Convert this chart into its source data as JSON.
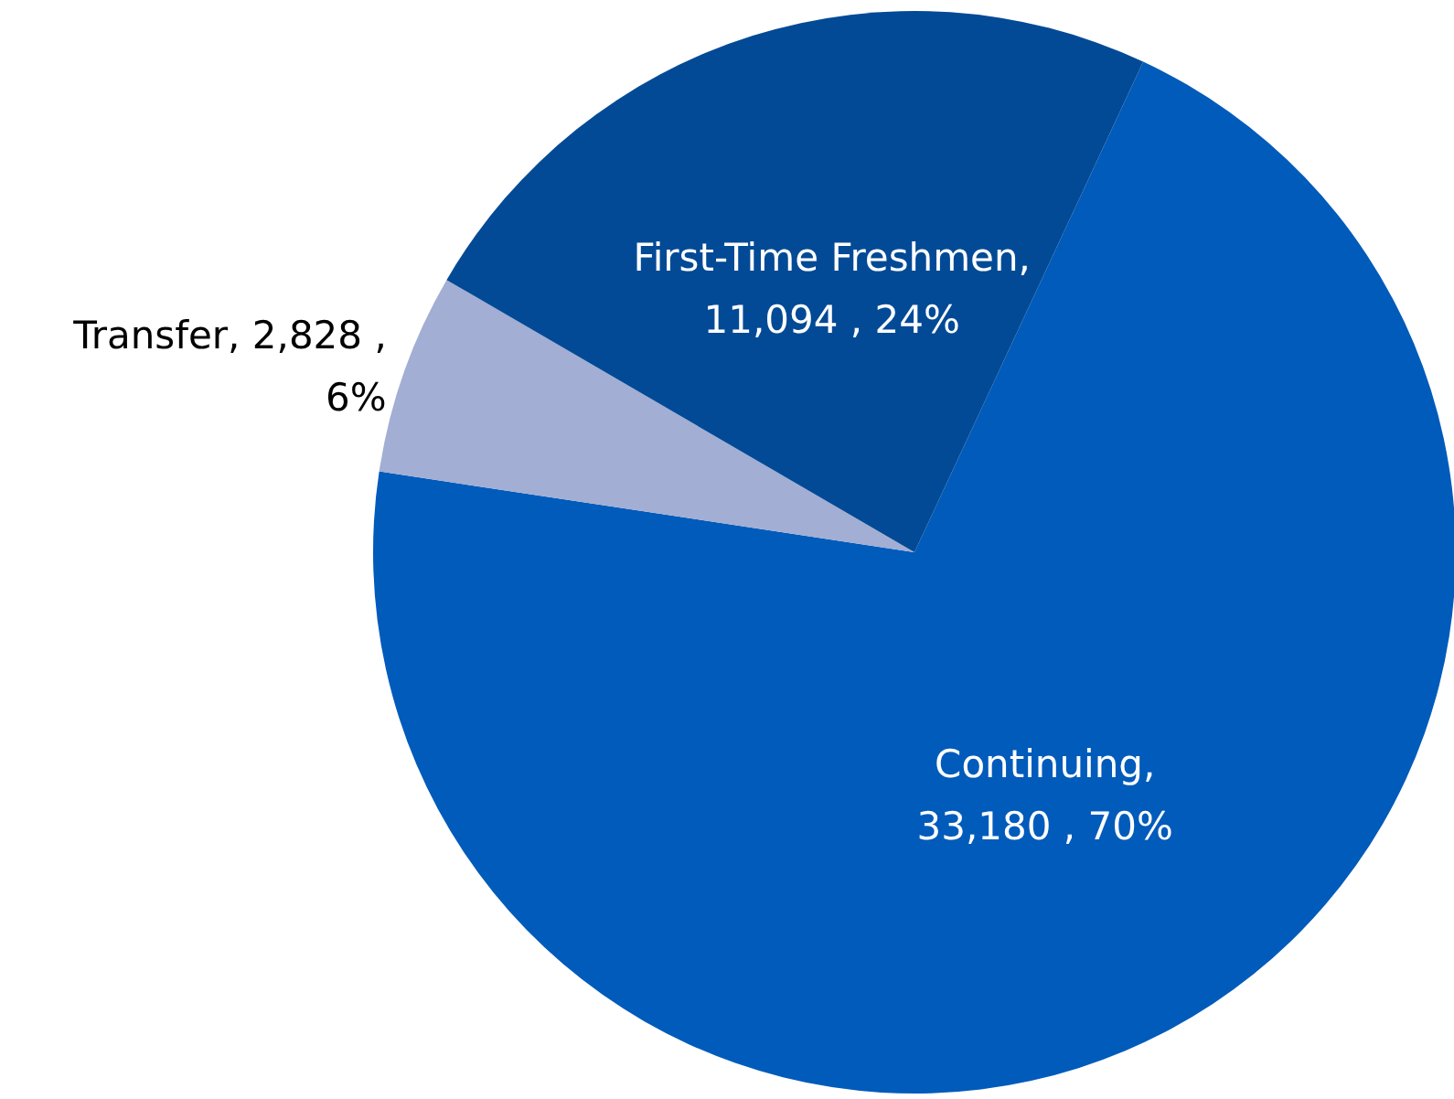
{
  "chart_data": {
    "type": "pie",
    "categories": [
      "Continuing",
      "Transfer",
      "First-Time Freshmen"
    ],
    "values": [
      33180,
      2828,
      11094
    ],
    "colors": [
      "#005bbb",
      "#a2aed3",
      "#024a96"
    ],
    "value_labels": [
      ",\n33,180 , 70%",
      ", 2,828 ,\n6%",
      ",\n11,094 , 24%"
    ]
  }
}
